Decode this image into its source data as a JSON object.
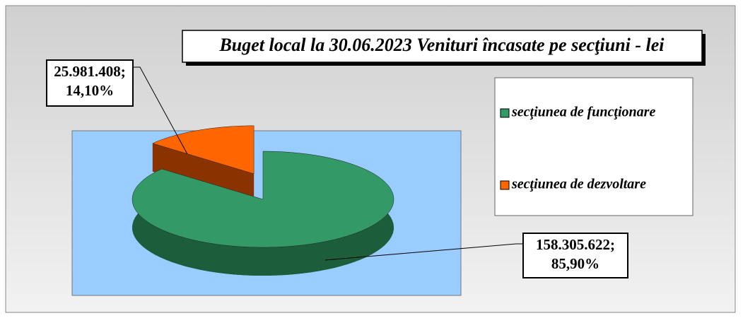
{
  "chart_data": {
    "type": "pie",
    "title": "Buget local la 30.06.2023 Venituri încasate pe secţiuni - lei",
    "categories": [
      "secţiunea de funcţionare",
      "secţiunea de dezvoltare"
    ],
    "values": [
      158305622,
      25981408
    ],
    "value_labels": [
      [
        "158.305.622;",
        "85,90%"
      ],
      [
        "25.981.408;",
        "14,10%"
      ]
    ],
    "colors": [
      "#339966",
      "#ff6600"
    ],
    "side_colors": [
      "#1c5e3c",
      "#8a3300"
    ],
    "legend": "right"
  }
}
